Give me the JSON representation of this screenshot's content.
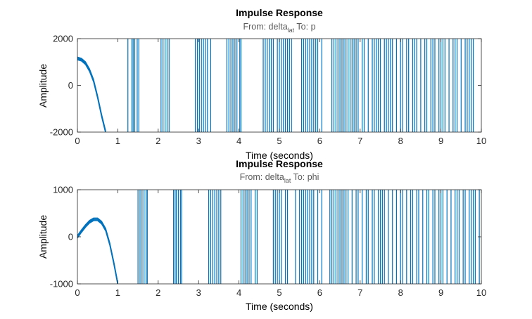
{
  "colors": {
    "series": "#0072BD",
    "axes": "#262626",
    "subtitle": "#595959"
  },
  "chart_data": [
    {
      "type": "line",
      "title": "Impulse Response",
      "subtitle": {
        "prefix": "From: delta",
        "subscript": "lat",
        "suffix": "  To: p"
      },
      "xlabel": "Time (seconds)",
      "ylabel": "Amplitude",
      "xlim": [
        0,
        10
      ],
      "ylim": [
        -2000,
        2000
      ],
      "xticks": [
        0,
        1,
        2,
        3,
        4,
        5,
        6,
        7,
        8,
        9,
        10
      ],
      "yticks": [
        -2000,
        0,
        2000
      ],
      "grid": false,
      "series": [
        {
          "description": "smooth part before divergence",
          "x": [
            0,
            0.1,
            0.2,
            0.3,
            0.4,
            0.5,
            0.6,
            0.7
          ],
          "y": [
            1150,
            1100,
            950,
            650,
            200,
            -500,
            -1300,
            -2000
          ],
          "crossings": [
            1.25,
            1.35,
            1.38,
            1.42,
            1.48,
            1.52,
            2.07,
            2.12,
            2.17,
            2.22,
            2.27,
            2.92,
            2.97,
            3.02,
            3.07,
            3.12,
            3.17,
            3.22,
            3.3,
            3.7,
            3.75,
            3.8,
            3.85,
            3.9,
            3.95,
            4.02,
            4.05,
            4.6,
            4.65,
            4.7,
            4.75,
            4.8,
            4.85,
            4.95,
            5.0,
            5.05,
            5.1,
            5.15,
            5.2,
            5.25,
            5.3,
            5.55,
            5.6,
            5.65,
            5.7,
            5.75,
            5.8,
            5.85,
            5.9,
            5.95,
            6.05,
            6.3,
            6.35,
            6.4,
            6.45,
            6.5,
            6.55,
            6.6,
            6.65,
            6.7,
            6.75,
            6.8,
            6.85,
            6.9,
            6.95,
            7.05,
            7.1,
            7.2,
            7.3,
            7.35,
            7.4,
            7.45,
            7.5,
            7.6,
            7.65,
            7.7,
            7.75,
            7.8,
            7.9,
            8.0,
            8.05,
            8.15,
            8.2,
            8.3,
            8.35,
            8.4,
            8.5,
            8.6,
            8.65,
            8.75,
            8.8,
            8.85,
            8.95,
            9.0,
            9.05,
            9.1,
            9.2,
            9.3,
            9.35,
            9.4,
            9.5,
            9.6,
            9.65,
            9.7,
            9.75,
            9.8
          ]
        }
      ]
    },
    {
      "type": "line",
      "title": "Impulse Response",
      "subtitle": {
        "prefix": "From: delta",
        "subscript": "lat",
        "suffix": "  To: phi"
      },
      "xlabel": "Time (seconds)",
      "ylabel": "Amplitude",
      "xlim": [
        0,
        10
      ],
      "ylim": [
        -1000,
        1000
      ],
      "xticks": [
        0,
        1,
        2,
        3,
        4,
        5,
        6,
        7,
        8,
        9,
        10
      ],
      "yticks": [
        -1000,
        0,
        1000
      ],
      "grid": false,
      "series": [
        {
          "description": "smooth part before divergence",
          "x": [
            0,
            0.1,
            0.2,
            0.3,
            0.4,
            0.5,
            0.6,
            0.7,
            0.8,
            0.9,
            1.0
          ],
          "y": [
            0,
            120,
            230,
            320,
            370,
            370,
            300,
            150,
            -150,
            -550,
            -1000
          ],
          "crossings": [
            1.5,
            1.55,
            1.6,
            1.65,
            1.7,
            1.73,
            2.38,
            2.42,
            2.45,
            2.5,
            2.55,
            2.58,
            3.25,
            3.3,
            3.35,
            3.4,
            3.45,
            3.5,
            3.55,
            4.05,
            4.1,
            4.15,
            4.2,
            4.25,
            4.3,
            4.4,
            4.45,
            4.85,
            4.9,
            4.95,
            5.0,
            5.05,
            5.15,
            5.2,
            5.4,
            5.5,
            5.55,
            5.6,
            5.65,
            5.7,
            5.75,
            5.8,
            5.85,
            5.95,
            6.05,
            6.25,
            6.3,
            6.35,
            6.4,
            6.45,
            6.5,
            6.55,
            6.6,
            6.65,
            6.7,
            6.8,
            6.9,
            6.95,
            7.05,
            7.15,
            7.2,
            7.3,
            7.35,
            7.45,
            7.5,
            7.55,
            7.6,
            7.7,
            7.8,
            7.9,
            8.0,
            8.05,
            8.15,
            8.25,
            8.3,
            8.4,
            8.45,
            8.55,
            8.65,
            8.7,
            8.8,
            8.85,
            8.95,
            9.0,
            9.05,
            9.15,
            9.25,
            9.35,
            9.4,
            9.45,
            9.55,
            9.6,
            9.7,
            9.75,
            9.8,
            9.85,
            9.95
          ]
        }
      ]
    }
  ]
}
